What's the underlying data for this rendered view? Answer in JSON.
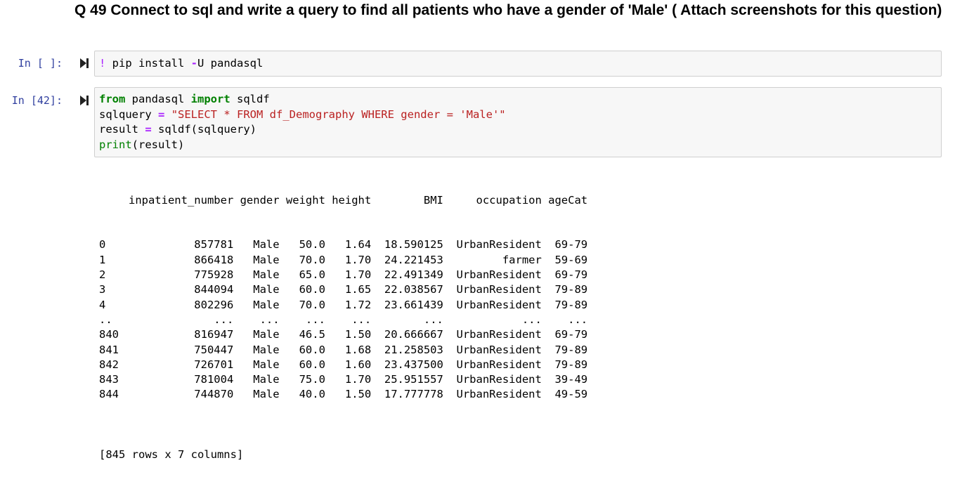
{
  "question": {
    "title": "Q 49 Connect to sql and write a query to find all patients who have a gender of 'Male' ( Attach screenshots for this question)"
  },
  "cells": [
    {
      "prompt": "In [ ]:",
      "code": [
        [
          {
            "t": "!",
            "c": "bang"
          },
          {
            "t": " pip install ",
            "c": ""
          },
          {
            "t": "-",
            "c": "op"
          },
          {
            "t": "U pandasql",
            "c": ""
          }
        ]
      ]
    },
    {
      "prompt": "In [42]:",
      "code": [
        [
          {
            "t": "from",
            "c": "kw"
          },
          {
            "t": " pandasql ",
            "c": ""
          },
          {
            "t": "import",
            "c": "kw"
          },
          {
            "t": " sqldf",
            "c": ""
          }
        ],
        [
          {
            "t": "sqlquery ",
            "c": ""
          },
          {
            "t": "=",
            "c": "op"
          },
          {
            "t": " ",
            "c": ""
          },
          {
            "t": "\"SELECT * FROM df_Demography WHERE gender = 'Male'\"",
            "c": "str"
          }
        ],
        [
          {
            "t": "result ",
            "c": ""
          },
          {
            "t": "=",
            "c": "op"
          },
          {
            "t": " sqldf(sqlquery)",
            "c": ""
          }
        ],
        [
          {
            "t": "print",
            "c": "fn"
          },
          {
            "t": "(result)",
            "c": ""
          }
        ]
      ]
    }
  ],
  "output": {
    "columns": [
      "inpatient_number",
      "gender",
      "weight",
      "height",
      "BMI",
      "occupation",
      "ageCat"
    ],
    "rows": [
      [
        "0",
        "857781",
        "Male",
        "50.0",
        "1.64",
        "18.590125",
        "UrbanResident",
        "69-79"
      ],
      [
        "1",
        "866418",
        "Male",
        "70.0",
        "1.70",
        "24.221453",
        "farmer",
        "59-69"
      ],
      [
        "2",
        "775928",
        "Male",
        "65.0",
        "1.70",
        "22.491349",
        "UrbanResident",
        "69-79"
      ],
      [
        "3",
        "844094",
        "Male",
        "60.0",
        "1.65",
        "22.038567",
        "UrbanResident",
        "79-89"
      ],
      [
        "4",
        "802296",
        "Male",
        "70.0",
        "1.72",
        "23.661439",
        "UrbanResident",
        "79-89"
      ],
      [
        "..",
        "...",
        "...",
        "...",
        "...",
        "...",
        "...",
        "..."
      ],
      [
        "840",
        "816947",
        "Male",
        "46.5",
        "1.50",
        "20.666667",
        "UrbanResident",
        "69-79"
      ],
      [
        "841",
        "750447",
        "Male",
        "60.0",
        "1.68",
        "21.258503",
        "UrbanResident",
        "79-89"
      ],
      [
        "842",
        "726701",
        "Male",
        "60.0",
        "1.60",
        "23.437500",
        "UrbanResident",
        "79-89"
      ],
      [
        "843",
        "781004",
        "Male",
        "75.0",
        "1.70",
        "25.951557",
        "UrbanResident",
        "39-49"
      ],
      [
        "844",
        "744870",
        "Male",
        "40.0",
        "1.50",
        "17.777778",
        "UrbanResident",
        "49-59"
      ]
    ],
    "footer": "[845 rows x 7 columns]"
  },
  "icons": {
    "run": "run-cell-icon"
  },
  "colors": {
    "prompt": "#303f9f",
    "keyword": "#008000",
    "operator": "#aa22ff",
    "string": "#ba2121",
    "cell_bg": "#f7f7f7"
  }
}
